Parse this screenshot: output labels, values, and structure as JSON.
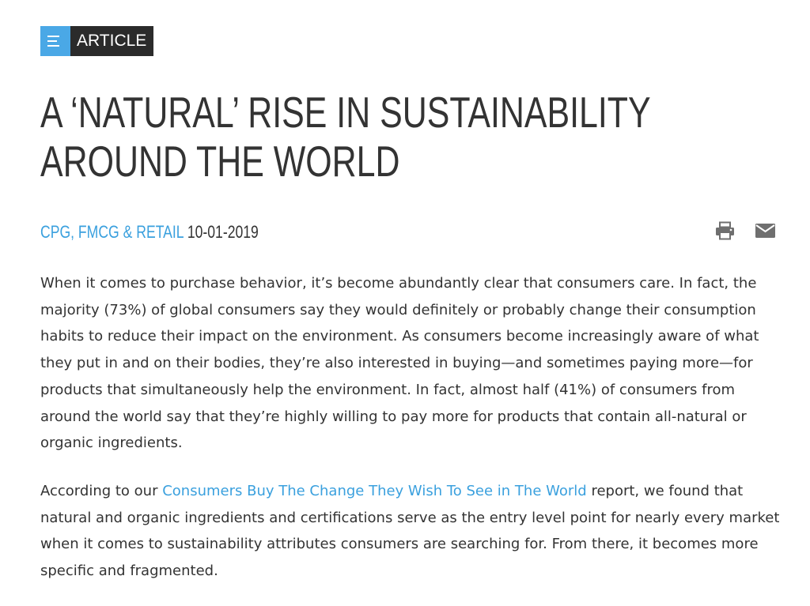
{
  "badge": {
    "icon": "list-icon",
    "label": "ARTICLE"
  },
  "article": {
    "title": "A ‘NATURAL’ RISE IN SUSTAINABILITY AROUND THE WORLD",
    "category": "CPG, FMCG & RETAIL",
    "date": "10-01-2019",
    "icons": {
      "print": "print-icon",
      "email": "envelope-icon"
    },
    "paragraph1": "When it comes to purchase behavior, it’s become abundantly clear that consumers care. In fact, the majority (73%) of global consumers say they would definitely or probably change their consumption habits to reduce their impact on the environment. As consumers become increasingly aware of what they put in and on their bodies, they’re also interested in buying—and sometimes paying more—for products that simultaneously help the environment. In fact, almost half (41%) of consumers from around the world say that they’re highly willing to pay more for products that contain all-natural or organic ingredients.",
    "paragraph2": {
      "before": "According to our ",
      "link": "Consumers Buy The Change They Wish To See in The World",
      "after": " report, we found that natural and organic ingredients and certifications serve as the entry level point for nearly every market when it comes to sustainability attributes consumers are searching for. From there, it becomes more specific and fragmented."
    }
  },
  "colors": {
    "accent": "#3aa0de",
    "badge_icon_bg": "#4aa8e6",
    "badge_label_bg": "#2b2b2b",
    "text": "#333333",
    "icon_gray": "#6f6f6f"
  }
}
